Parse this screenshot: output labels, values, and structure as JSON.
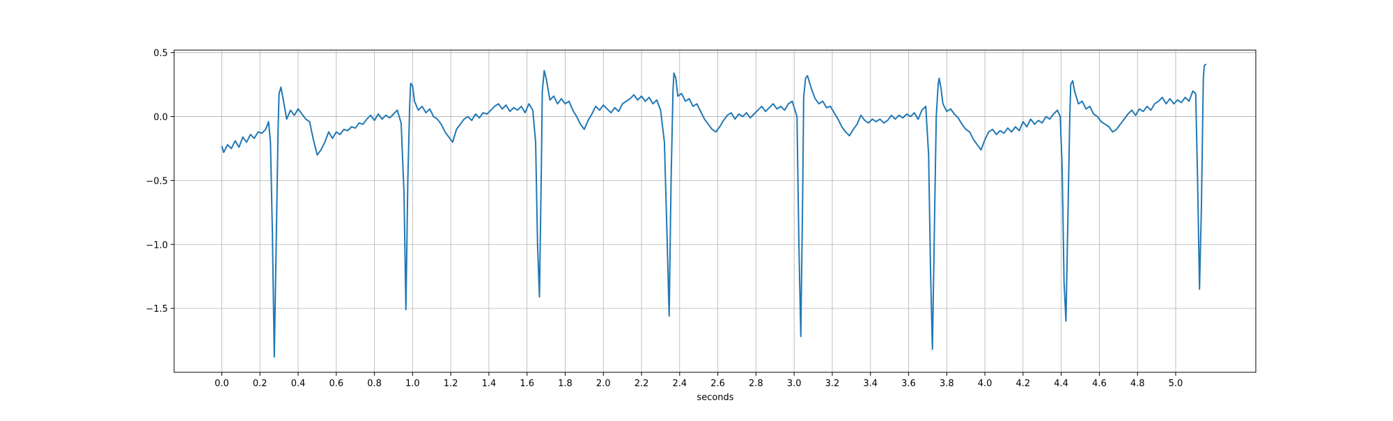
{
  "chart_data": {
    "type": "line",
    "title": "",
    "xlabel": "seconds",
    "ylabel": "",
    "xlim": [
      -0.25,
      5.42
    ],
    "ylim": [
      -2.0,
      0.52
    ],
    "grid": true,
    "line_color": "#1f77b4",
    "x_ticks": [
      0.0,
      0.2,
      0.4,
      0.6,
      0.8,
      1.0,
      1.2,
      1.4,
      1.6,
      1.8,
      2.0,
      2.2,
      2.4,
      2.6,
      2.8,
      3.0,
      3.2,
      3.4,
      3.6,
      3.8,
      4.0,
      4.2,
      4.4,
      4.6,
      4.8,
      5.0
    ],
    "x_tick_labels": [
      "0.0",
      "0.2",
      "0.4",
      "0.6",
      "0.8",
      "1.0",
      "1.2",
      "1.4",
      "1.6",
      "1.8",
      "2.0",
      "2.2",
      "2.4",
      "2.6",
      "2.8",
      "3.0",
      "3.2",
      "3.4",
      "3.6",
      "3.8",
      "4.0",
      "4.2",
      "4.4",
      "4.6",
      "4.8",
      "5.0"
    ],
    "y_ticks": [
      0.5,
      0.0,
      -0.5,
      -1.0,
      -1.5
    ],
    "y_tick_labels": [
      "0.5",
      "0.0",
      "−0.5",
      "−1.0",
      "−1.5"
    ],
    "series": [
      {
        "x": [
          0.0,
          0.01,
          0.03,
          0.05,
          0.07,
          0.09,
          0.11,
          0.13,
          0.15,
          0.17,
          0.19,
          0.21,
          0.23,
          0.245,
          0.255,
          0.265,
          0.275,
          0.285,
          0.295,
          0.3,
          0.31,
          0.32,
          0.34,
          0.36,
          0.38,
          0.4,
          0.42,
          0.44,
          0.46,
          0.48,
          0.5,
          0.52,
          0.54,
          0.56,
          0.58,
          0.6,
          0.62,
          0.64,
          0.66,
          0.68,
          0.7,
          0.72,
          0.74,
          0.76,
          0.78,
          0.8,
          0.82,
          0.84,
          0.86,
          0.88,
          0.9,
          0.92,
          0.94,
          0.955,
          0.965,
          0.975,
          0.985,
          0.99,
          1.0,
          1.01,
          1.03,
          1.05,
          1.07,
          1.09,
          1.11,
          1.13,
          1.15,
          1.17,
          1.19,
          1.21,
          1.23,
          1.25,
          1.27,
          1.29,
          1.31,
          1.33,
          1.35,
          1.37,
          1.39,
          1.41,
          1.43,
          1.45,
          1.47,
          1.49,
          1.51,
          1.53,
          1.55,
          1.57,
          1.59,
          1.61,
          1.63,
          1.645,
          1.655,
          1.665,
          1.675,
          1.68,
          1.69,
          1.7,
          1.72,
          1.74,
          1.76,
          1.78,
          1.8,
          1.82,
          1.84,
          1.86,
          1.88,
          1.9,
          1.92,
          1.94,
          1.96,
          1.98,
          2.0,
          2.02,
          2.04,
          2.06,
          2.08,
          2.1,
          2.12,
          2.14,
          2.16,
          2.18,
          2.2,
          2.22,
          2.24,
          2.26,
          2.28,
          2.3,
          2.32,
          2.335,
          2.345,
          2.355,
          2.365,
          2.37,
          2.38,
          2.39,
          2.41,
          2.43,
          2.45,
          2.47,
          2.49,
          2.51,
          2.53,
          2.55,
          2.57,
          2.59,
          2.61,
          2.63,
          2.65,
          2.67,
          2.69,
          2.71,
          2.73,
          2.75,
          2.77,
          2.79,
          2.81,
          2.83,
          2.85,
          2.87,
          2.89,
          2.91,
          2.93,
          2.95,
          2.97,
          2.99,
          3.015,
          3.025,
          3.035,
          3.045,
          3.05,
          3.06,
          3.07,
          3.09,
          3.11,
          3.13,
          3.15,
          3.17,
          3.19,
          3.21,
          3.23,
          3.25,
          3.27,
          3.29,
          3.31,
          3.33,
          3.35,
          3.37,
          3.39,
          3.41,
          3.43,
          3.45,
          3.47,
          3.49,
          3.51,
          3.53,
          3.55,
          3.57,
          3.59,
          3.61,
          3.63,
          3.65,
          3.67,
          3.69,
          3.705,
          3.715,
          3.725,
          3.735,
          3.745,
          3.755,
          3.76,
          3.77,
          3.78,
          3.8,
          3.82,
          3.84,
          3.86,
          3.88,
          3.9,
          3.92,
          3.94,
          3.96,
          3.98,
          4.0,
          4.02,
          4.04,
          4.06,
          4.08,
          4.1,
          4.12,
          4.14,
          4.16,
          4.18,
          4.2,
          4.22,
          4.24,
          4.26,
          4.28,
          4.3,
          4.32,
          4.34,
          4.36,
          4.38,
          4.395,
          4.405,
          4.415,
          4.425,
          4.435,
          4.445,
          4.45,
          4.46,
          4.47,
          4.49,
          4.51,
          4.53,
          4.55,
          4.57,
          4.59,
          4.61,
          4.63,
          4.65,
          4.67,
          4.69,
          4.71,
          4.73,
          4.75,
          4.77,
          4.79,
          4.81,
          4.83,
          4.85,
          4.87,
          4.89,
          4.91,
          4.93,
          4.95,
          4.97,
          4.99,
          5.01,
          5.03,
          5.05,
          5.07,
          5.09,
          5.105,
          5.115,
          5.125,
          5.135,
          5.145,
          5.15,
          5.16
        ],
        "y": [
          -0.23,
          -0.28,
          -0.22,
          -0.25,
          -0.19,
          -0.24,
          -0.16,
          -0.2,
          -0.14,
          -0.17,
          -0.12,
          -0.13,
          -0.1,
          -0.04,
          -0.2,
          -0.9,
          -1.88,
          -1.0,
          -0.1,
          0.18,
          0.23,
          0.15,
          -0.02,
          0.05,
          0.01,
          0.06,
          0.02,
          -0.02,
          -0.04,
          -0.18,
          -0.3,
          -0.26,
          -0.2,
          -0.12,
          -0.17,
          -0.12,
          -0.14,
          -0.1,
          -0.11,
          -0.08,
          -0.09,
          -0.05,
          -0.06,
          -0.02,
          0.01,
          -0.03,
          0.02,
          -0.02,
          0.01,
          -0.01,
          0.02,
          0.05,
          -0.05,
          -0.6,
          -1.51,
          -0.5,
          0.1,
          0.26,
          0.24,
          0.12,
          0.05,
          0.08,
          0.03,
          0.06,
          0.0,
          -0.02,
          -0.06,
          -0.12,
          -0.16,
          -0.2,
          -0.1,
          -0.06,
          -0.02,
          0.0,
          -0.03,
          0.02,
          -0.01,
          0.03,
          0.02,
          0.05,
          0.08,
          0.1,
          0.06,
          0.09,
          0.04,
          0.07,
          0.05,
          0.08,
          0.03,
          0.1,
          0.05,
          -0.2,
          -1.0,
          -1.41,
          -0.4,
          0.2,
          0.36,
          0.3,
          0.13,
          0.16,
          0.1,
          0.14,
          0.1,
          0.12,
          0.05,
          0.0,
          -0.06,
          -0.1,
          -0.03,
          0.02,
          0.08,
          0.05,
          0.09,
          0.06,
          0.03,
          0.07,
          0.04,
          0.1,
          0.12,
          0.14,
          0.17,
          0.13,
          0.16,
          0.12,
          0.15,
          0.1,
          0.13,
          0.05,
          -0.2,
          -1.0,
          -1.56,
          -0.5,
          0.2,
          0.34,
          0.3,
          0.16,
          0.18,
          0.12,
          0.14,
          0.08,
          0.1,
          0.04,
          -0.02,
          -0.06,
          -0.1,
          -0.12,
          -0.08,
          -0.03,
          0.01,
          0.03,
          -0.02,
          0.02,
          0.0,
          0.03,
          -0.01,
          0.02,
          0.05,
          0.08,
          0.04,
          0.07,
          0.1,
          0.06,
          0.08,
          0.05,
          0.1,
          0.12,
          0.0,
          -1.0,
          -1.72,
          -0.6,
          0.15,
          0.3,
          0.32,
          0.22,
          0.14,
          0.1,
          0.12,
          0.07,
          0.08,
          0.03,
          -0.02,
          -0.08,
          -0.12,
          -0.15,
          -0.1,
          -0.06,
          0.01,
          -0.03,
          -0.05,
          -0.02,
          -0.04,
          -0.02,
          -0.05,
          -0.03,
          0.01,
          -0.02,
          0.01,
          -0.01,
          0.02,
          0.0,
          0.03,
          -0.02,
          0.05,
          0.08,
          -0.3,
          -1.2,
          -1.82,
          -0.9,
          0.0,
          0.25,
          0.3,
          0.22,
          0.1,
          0.04,
          0.06,
          0.02,
          -0.01,
          -0.06,
          -0.1,
          -0.12,
          -0.18,
          -0.22,
          -0.26,
          -0.18,
          -0.12,
          -0.1,
          -0.14,
          -0.11,
          -0.13,
          -0.09,
          -0.12,
          -0.08,
          -0.11,
          -0.04,
          -0.08,
          -0.02,
          -0.06,
          -0.03,
          -0.05,
          0.0,
          -0.02,
          0.02,
          0.05,
          0.0,
          -0.4,
          -1.3,
          -1.6,
          -0.8,
          0.0,
          0.25,
          0.28,
          0.2,
          0.1,
          0.12,
          0.06,
          0.08,
          0.02,
          0.0,
          -0.04,
          -0.06,
          -0.08,
          -0.12,
          -0.1,
          -0.06,
          -0.02,
          0.02,
          0.05,
          0.01,
          0.06,
          0.04,
          0.08,
          0.05,
          0.1,
          0.12,
          0.15,
          0.1,
          0.14,
          0.1,
          0.13,
          0.11,
          0.15,
          0.12,
          0.2,
          0.18,
          -0.5,
          -1.35,
          -0.7,
          0.3,
          0.4,
          0.41
        ]
      }
    ]
  }
}
